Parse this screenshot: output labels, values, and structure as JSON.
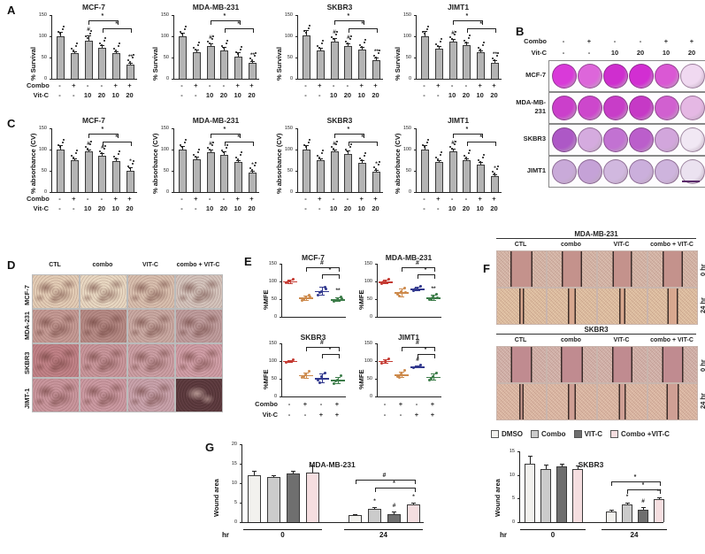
{
  "panels": {
    "A": {
      "label": "A",
      "xrow_labels": [
        "Combo",
        "Vit-C"
      ],
      "xsymbols": [
        [
          "-",
          "+",
          "-",
          "-",
          "+",
          "+"
        ],
        [
          "-",
          "-",
          "10",
          "20",
          "10",
          "20"
        ]
      ]
    },
    "B": {
      "label": "B",
      "xrow_labels": [
        "Combo",
        "Vit-C"
      ],
      "xsymbols": [
        [
          "-",
          "+",
          "-",
          "-",
          "+",
          "+"
        ],
        [
          "-",
          "-",
          "10",
          "20",
          "10",
          "20"
        ]
      ],
      "rows": [
        {
          "name_lines": [
            "MCF-7"
          ],
          "wells": [
            "#d93ad9",
            "#dd66da",
            "#cf2ecf",
            "#d22ed2",
            "#da58d4",
            "#f0d9f1"
          ]
        },
        {
          "name_lines": [
            "MDA-MB-",
            "231"
          ],
          "wells": [
            "#cb3fcb",
            "#cd47cc",
            "#c83dc8",
            "#c639c6",
            "#d160d0",
            "#e5b8e4"
          ]
        },
        {
          "name_lines": [
            "SKBR3"
          ],
          "wells": [
            "#ad58c6",
            "#d5abdf",
            "#c272d2",
            "#bb5ecb",
            "#d2a6dc",
            "#f1e8f4"
          ]
        },
        {
          "name_lines": [
            "JIMT1"
          ],
          "wells": [
            "#c9aad9",
            "#c5a2d7",
            "#d1b8df",
            "#cbafdc",
            "#ceb4dd",
            "#ebe2f0"
          ]
        }
      ]
    },
    "C": {
      "label": "C",
      "xrow_labels": [
        "Combo",
        "Vit-C"
      ],
      "xsymbols": [
        [
          "-",
          "+",
          "-",
          "-",
          "+",
          "+"
        ],
        [
          "-",
          "-",
          "10",
          "20",
          "10",
          "20"
        ]
      ]
    },
    "D": {
      "label": "D",
      "col_headers": [
        "CTL",
        "combo",
        "VIT-C",
        "combo + VIT-C"
      ],
      "rows": [
        {
          "name": "MCF-7",
          "tints": [
            "#e3cdb6",
            "#e8d8c2",
            "#d8bfae",
            "#d4c4bc"
          ],
          "dark": [
            false,
            false,
            false,
            false
          ]
        },
        {
          "name": "MDA-231",
          "tints": [
            "#c49a94",
            "#b58a85",
            "#c9a9a2",
            "#bf9d9d"
          ],
          "dark": [
            false,
            false,
            false,
            false
          ]
        },
        {
          "name": "SKBR3",
          "tints": [
            "#c08287",
            "#c8969b",
            "#cb9fa4",
            "#cf9ea6"
          ],
          "dark": [
            false,
            false,
            false,
            false
          ]
        },
        {
          "name": "JIMT-1",
          "tints": [
            "#c9969d",
            "#cb9aa2",
            "#c8a2ab",
            "#5f3d41"
          ],
          "dark": [
            false,
            false,
            false,
            true
          ]
        }
      ]
    },
    "E": {
      "label": "E",
      "xrow_labels": [
        "Combo",
        "Vit-C"
      ],
      "xsymbols": [
        [
          "-",
          "+",
          "-",
          "+"
        ],
        [
          "-",
          "-",
          "+",
          "+"
        ]
      ]
    },
    "F": {
      "label": "F",
      "col_headers": [
        "CTL",
        "combo",
        "VIT-C",
        "combo + VIT-C"
      ],
      "row_labels": [
        "0 hr",
        "24 hr"
      ],
      "blocks": [
        {
          "title": "MDA-MB-231",
          "rows": [
            {
              "label": "0 hr",
              "bg": "#dcc0b2",
              "band_color": "#c4928c",
              "bands": [
                0.46,
                0.42,
                0.4,
                0.42
              ]
            },
            {
              "label": "24 hr",
              "bg": "#e6c9ab",
              "band_color": "#d8a88f",
              "bands": [
                0.1,
                0.16,
                0.13,
                0.22
              ]
            }
          ]
        },
        {
          "title": "SKBR3",
          "rows": [
            {
              "label": "0 hr",
              "bg": "#d9bcb4",
              "band_color": "#c08b90",
              "bands": [
                0.44,
                0.46,
                0.42,
                0.44
              ]
            },
            {
              "label": "24 hr",
              "bg": "#e3c2ae",
              "band_color": "#cf9f94",
              "bands": [
                0.09,
                0.16,
                0.15,
                0.26
              ]
            }
          ]
        }
      ]
    },
    "G": {
      "label": "G",
      "xlabel": "hr",
      "legend": [
        {
          "label": "DMSO",
          "color": "#f2f1ee"
        },
        {
          "label": "Combo",
          "color": "#cbcbcb"
        },
        {
          "label": "VIT-C",
          "color": "#6f6f6f"
        },
        {
          "label": "Combo +VIT-C",
          "color": "#f5dee0"
        }
      ]
    }
  },
  "chart_data": [
    {
      "mount": "A0",
      "type": "bar",
      "title": "MCF-7",
      "ylabel": "% Survival",
      "ylim": [
        0,
        150
      ],
      "yticks": [
        0,
        50,
        100,
        150
      ],
      "values": [
        100,
        60,
        90,
        73,
        60,
        33
      ],
      "errors": [
        10,
        5,
        12,
        6,
        5,
        4
      ],
      "dots": true,
      "overbar": [
        "",
        "",
        "#",
        "",
        "",
        "**"
      ],
      "brackets": [
        {
          "from": 2,
          "to": 4,
          "label": "*",
          "level": 0
        },
        {
          "from": 3,
          "to": 5,
          "label": "*",
          "level": 1
        }
      ]
    },
    {
      "mount": "A1",
      "type": "bar",
      "title": "MDA-MB-231",
      "ylabel": "% Survival",
      "ylim": [
        0,
        150
      ],
      "yticks": [
        0,
        50,
        100,
        150
      ],
      "values": [
        100,
        62,
        77,
        67,
        52,
        38
      ],
      "errors": [
        8,
        6,
        7,
        8,
        10,
        4
      ],
      "dots": true,
      "overbar": [
        "",
        "",
        "#",
        "",
        "",
        "**"
      ],
      "brackets": [
        {
          "from": 2,
          "to": 4,
          "label": "*",
          "level": 0
        },
        {
          "from": 3,
          "to": 5,
          "label": "*",
          "level": 1
        }
      ]
    },
    {
      "mount": "A2",
      "type": "bar",
      "title": "SKBR3",
      "ylabel": "% Survival",
      "ylim": [
        0,
        150
      ],
      "yticks": [
        0,
        50,
        100,
        150
      ],
      "values": [
        102,
        67,
        88,
        77,
        68,
        44
      ],
      "errors": [
        12,
        6,
        7,
        6,
        6,
        5
      ],
      "dots": true,
      "overbar": [
        "",
        "",
        "#",
        "#",
        "",
        "**"
      ],
      "brackets": [
        {
          "from": 2,
          "to": 4,
          "label": "*",
          "level": 0
        },
        {
          "from": 3,
          "to": 5,
          "label": "*",
          "level": 1
        }
      ]
    },
    {
      "mount": "A3",
      "type": "bar",
      "title": "JIMT1",
      "ylabel": "% Survival",
      "ylim": [
        0,
        150
      ],
      "yticks": [
        0,
        50,
        100,
        150
      ],
      "values": [
        100,
        70,
        88,
        80,
        63,
        38
      ],
      "errors": [
        12,
        7,
        5,
        6,
        4,
        5
      ],
      "dots": true,
      "overbar": [
        "",
        "",
        "#",
        "",
        "",
        "**"
      ],
      "brackets": [
        {
          "from": 2,
          "to": 4,
          "label": "*",
          "level": 0
        },
        {
          "from": 3,
          "to": 5,
          "label": "*",
          "level": 1
        }
      ]
    },
    {
      "mount": "C0",
      "type": "bar",
      "title": "MCF-7",
      "ylabel": "% absorbance (CV)",
      "ylim": [
        0,
        150
      ],
      "yticks": [
        0,
        50,
        100,
        150
      ],
      "values": [
        100,
        75,
        95,
        85,
        73,
        50
      ],
      "errors": [
        10,
        4,
        4,
        7,
        6,
        8
      ],
      "dots": true,
      "overbar": [
        "",
        "",
        "#",
        "#",
        "",
        "*"
      ],
      "brackets": [
        {
          "from": 2,
          "to": 4,
          "label": "*",
          "level": 0
        },
        {
          "from": 3,
          "to": 5,
          "label": "*",
          "level": 1
        }
      ]
    },
    {
      "mount": "C1",
      "type": "bar",
      "title": "MDA-MB-231",
      "ylabel": "% absorbance (CV)",
      "ylim": [
        0,
        150
      ],
      "yticks": [
        0,
        50,
        100,
        150
      ],
      "values": [
        100,
        78,
        93,
        88,
        70,
        45
      ],
      "errors": [
        8,
        5,
        6,
        7,
        5,
        5
      ],
      "dots": true,
      "overbar": [
        "",
        "",
        "#",
        "",
        "",
        "*"
      ],
      "brackets": [
        {
          "from": 2,
          "to": 4,
          "label": "*",
          "level": 0
        },
        {
          "from": 3,
          "to": 5,
          "label": "*",
          "level": 1
        }
      ]
    },
    {
      "mount": "C2",
      "type": "bar",
      "title": "SKBR3",
      "ylabel": "% absorbance (CV)",
      "ylim": [
        0,
        150
      ],
      "yticks": [
        0,
        50,
        100,
        150
      ],
      "values": [
        100,
        75,
        95,
        90,
        68,
        48
      ],
      "errors": [
        10,
        4,
        6,
        8,
        6,
        4
      ],
      "dots": true,
      "overbar": [
        "",
        "",
        "#",
        "",
        "",
        "*"
      ],
      "brackets": [
        {
          "from": 2,
          "to": 4,
          "label": "*",
          "level": 0
        },
        {
          "from": 3,
          "to": 5,
          "label": "*",
          "level": 1
        }
      ]
    },
    {
      "mount": "C3",
      "type": "bar",
      "title": "JIMT1",
      "ylabel": "% absorbance (CV)",
      "ylim": [
        0,
        150
      ],
      "yticks": [
        0,
        50,
        100,
        150
      ],
      "values": [
        100,
        70,
        95,
        75,
        65,
        38
      ],
      "errors": [
        10,
        4,
        8,
        4,
        6,
        3
      ],
      "dots": true,
      "overbar": [
        "",
        "",
        "#",
        "",
        "",
        "*"
      ],
      "brackets": [
        {
          "from": 2,
          "to": 4,
          "label": "*",
          "level": 0
        },
        {
          "from": 3,
          "to": 5,
          "label": "*",
          "level": 1
        }
      ]
    },
    {
      "mount": "E0",
      "type": "scatter",
      "title": "MCF-7",
      "ylabel": "%MFE",
      "ylim": [
        0,
        150
      ],
      "yticks": [
        0,
        50,
        100,
        150
      ],
      "groups": [
        {
          "name": "CTL",
          "color": "#c43b33",
          "points": [
            96,
            101,
            107,
            98
          ]
        },
        {
          "name": "Combo",
          "color": "#cd8a4c",
          "points": [
            47,
            54,
            61,
            50,
            57
          ]
        },
        {
          "name": "VIT-C",
          "color": "#32398e",
          "points": [
            62,
            72,
            85,
            70,
            78
          ]
        },
        {
          "name": "Combo+VIT-C",
          "color": "#3c7c49",
          "points": [
            44,
            50,
            57,
            47,
            52
          ]
        }
      ],
      "over": [
        "",
        "",
        "",
        "**"
      ],
      "brackets": [
        {
          "from": 1,
          "to": 3,
          "label": "#",
          "level": 0
        },
        {
          "from": 2,
          "to": 3,
          "label": "*",
          "level": 1
        }
      ]
    },
    {
      "mount": "E1",
      "type": "scatter",
      "title": "MDA-MB-231",
      "ylabel": "%MFE",
      "ylim": [
        0,
        150
      ],
      "yticks": [
        0,
        50,
        100,
        150
      ],
      "groups": [
        {
          "name": "CTL",
          "color": "#c43b33",
          "points": [
            95,
            100,
            107,
            98
          ]
        },
        {
          "name": "Combo",
          "color": "#cd8a4c",
          "points": [
            63,
            72,
            82,
            58,
            70
          ]
        },
        {
          "name": "VIT-C",
          "color": "#32398e",
          "points": [
            74,
            80,
            87,
            78
          ]
        },
        {
          "name": "Combo+VIT-C",
          "color": "#3c7c49",
          "points": [
            50,
            57,
            63,
            48,
            55
          ]
        }
      ],
      "over": [
        "",
        "",
        "",
        "**"
      ],
      "brackets": [
        {
          "from": 1,
          "to": 3,
          "label": "#",
          "level": 0
        },
        {
          "from": 2,
          "to": 3,
          "label": "*",
          "level": 1
        }
      ]
    },
    {
      "mount": "E2",
      "type": "scatter",
      "title": "SKBR3",
      "ylabel": "%MFE",
      "ylim": [
        0,
        150
      ],
      "yticks": [
        0,
        50,
        100,
        150
      ],
      "groups": [
        {
          "name": "CTL",
          "color": "#c43b33",
          "points": [
            97,
            100,
            104
          ]
        },
        {
          "name": "Combo",
          "color": "#cd8a4c",
          "points": [
            54,
            62,
            71,
            57
          ]
        },
        {
          "name": "VIT-C",
          "color": "#32398e",
          "points": [
            46,
            57,
            67,
            40
          ]
        },
        {
          "name": "Combo+VIT-C",
          "color": "#3c7c49",
          "points": [
            37,
            47,
            58,
            44
          ]
        }
      ],
      "over": [
        "",
        "",
        "",
        ""
      ],
      "brackets": [
        {
          "from": 1,
          "to": 3,
          "label": "#",
          "level": 0
        },
        {
          "from": 2,
          "to": 3,
          "label": "*",
          "level": 1
        }
      ]
    },
    {
      "mount": "E3",
      "type": "scatter",
      "title": "JIMT1",
      "ylabel": "%MFE",
      "ylim": [
        0,
        150
      ],
      "yticks": [
        0,
        50,
        100,
        150
      ],
      "groups": [
        {
          "name": "CTL",
          "color": "#c43b33",
          "points": [
            94,
            100,
            107
          ]
        },
        {
          "name": "Combo",
          "color": "#cd8a4c",
          "points": [
            57,
            65,
            73,
            55
          ]
        },
        {
          "name": "VIT-C",
          "color": "#32398e",
          "points": [
            82,
            85,
            88
          ]
        },
        {
          "name": "Combo+VIT-C",
          "color": "#3c7c49",
          "points": [
            47,
            57,
            67,
            52
          ]
        }
      ],
      "over": [
        "",
        "",
        "#",
        ""
      ],
      "brackets": [
        {
          "from": 1,
          "to": 3,
          "label": "#",
          "level": 0
        },
        {
          "from": 2,
          "to": 3,
          "label": "*",
          "level": 1
        }
      ]
    },
    {
      "mount": "G0",
      "type": "bar",
      "title": "MDA-MB-231",
      "ylabel": "Wound area",
      "ylim": [
        0,
        20
      ],
      "yticks": [
        0,
        5,
        10,
        15,
        20
      ],
      "group_size": 4,
      "xgroups": [
        "0",
        "24"
      ],
      "xlabel": "hr",
      "values": [
        12,
        11.5,
        12.5,
        12.8,
        1.8,
        3.3,
        2.1,
        4.5
      ],
      "errors": [
        1.2,
        0.6,
        0.7,
        1.8,
        0.3,
        0.5,
        0.6,
        0.5
      ],
      "colors": [
        "#f2f1ee",
        "#cbcbcb",
        "#6f6f6f",
        "#f5dee0"
      ],
      "overbar": [
        "",
        "",
        "",
        "",
        "",
        "*",
        "#",
        "*"
      ],
      "brackets": [
        {
          "from": 4,
          "to": 7,
          "label": "#",
          "level": 0
        },
        {
          "from": 5,
          "to": 7,
          "label": "*",
          "level": 1
        }
      ]
    },
    {
      "mount": "G1",
      "type": "bar",
      "title": "SKBR3",
      "ylabel": "Wound area",
      "ylim": [
        0,
        15
      ],
      "yticks": [
        0,
        5,
        10,
        15
      ],
      "group_size": 4,
      "xgroups": [
        "0",
        "24"
      ],
      "xlabel": "hr",
      "values": [
        12.3,
        11.2,
        11.8,
        11.2,
        2.2,
        3.7,
        2.7,
        4.8
      ],
      "errors": [
        1.7,
        0.9,
        0.5,
        0.8,
        0.4,
        0.5,
        0.4,
        0.4
      ],
      "colors": [
        "#f2f1ee",
        "#cbcbcb",
        "#6f6f6f",
        "#f5dee0"
      ],
      "overbar": [
        "",
        "",
        "",
        "",
        "",
        "*",
        "#",
        "**"
      ],
      "brackets": [
        {
          "from": 4,
          "to": 7,
          "label": "*",
          "level": 0
        },
        {
          "from": 5,
          "to": 7,
          "label": "*",
          "level": 1
        }
      ]
    }
  ]
}
